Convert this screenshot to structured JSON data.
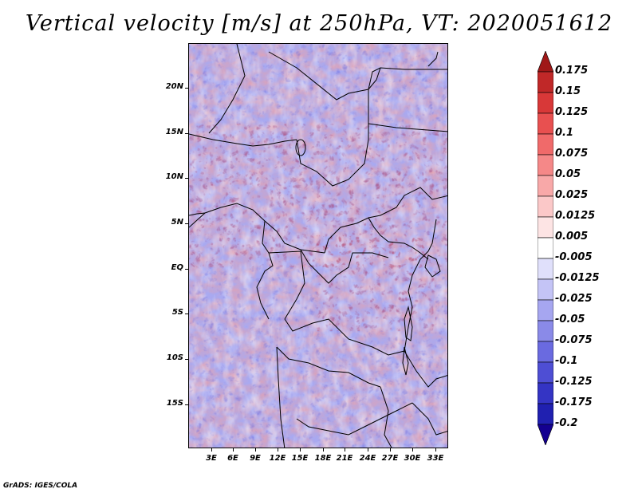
{
  "title": "Vertical velocity [m/s] at 250hPa, VT: 2020051612",
  "credit": "GrADS: IGES/COLA",
  "lat_labels": [
    "20N",
    "15N",
    "10N",
    "5N",
    "EQ",
    "5S",
    "10S",
    "15S"
  ],
  "lon_labels": [
    "3E",
    "6E",
    "9E",
    "12E",
    "15E",
    "18E",
    "21E",
    "24E",
    "27E",
    "30E",
    "33E"
  ],
  "colorbar": {
    "labels": [
      "0.175",
      "0.15",
      "0.125",
      "0.1",
      "0.075",
      "0.05",
      "0.025",
      "0.0125",
      "0.005",
      "-0.005",
      "-0.0125",
      "-0.025",
      "-0.05",
      "-0.075",
      "-0.1",
      "-0.125",
      "-0.175",
      "-0.2"
    ],
    "colors": [
      "#a01818",
      "#c02828",
      "#d83838",
      "#e85050",
      "#f06a6a",
      "#f58888",
      "#f8a8a8",
      "#fbc8c8",
      "#fde4e4",
      "#ffffff",
      "#e0e0fb",
      "#c4c4f6",
      "#a6a6f0",
      "#8a8ae8",
      "#6a6ae0",
      "#4e4ed4",
      "#3434c4",
      "#2020b0",
      "#140090"
    ]
  }
}
